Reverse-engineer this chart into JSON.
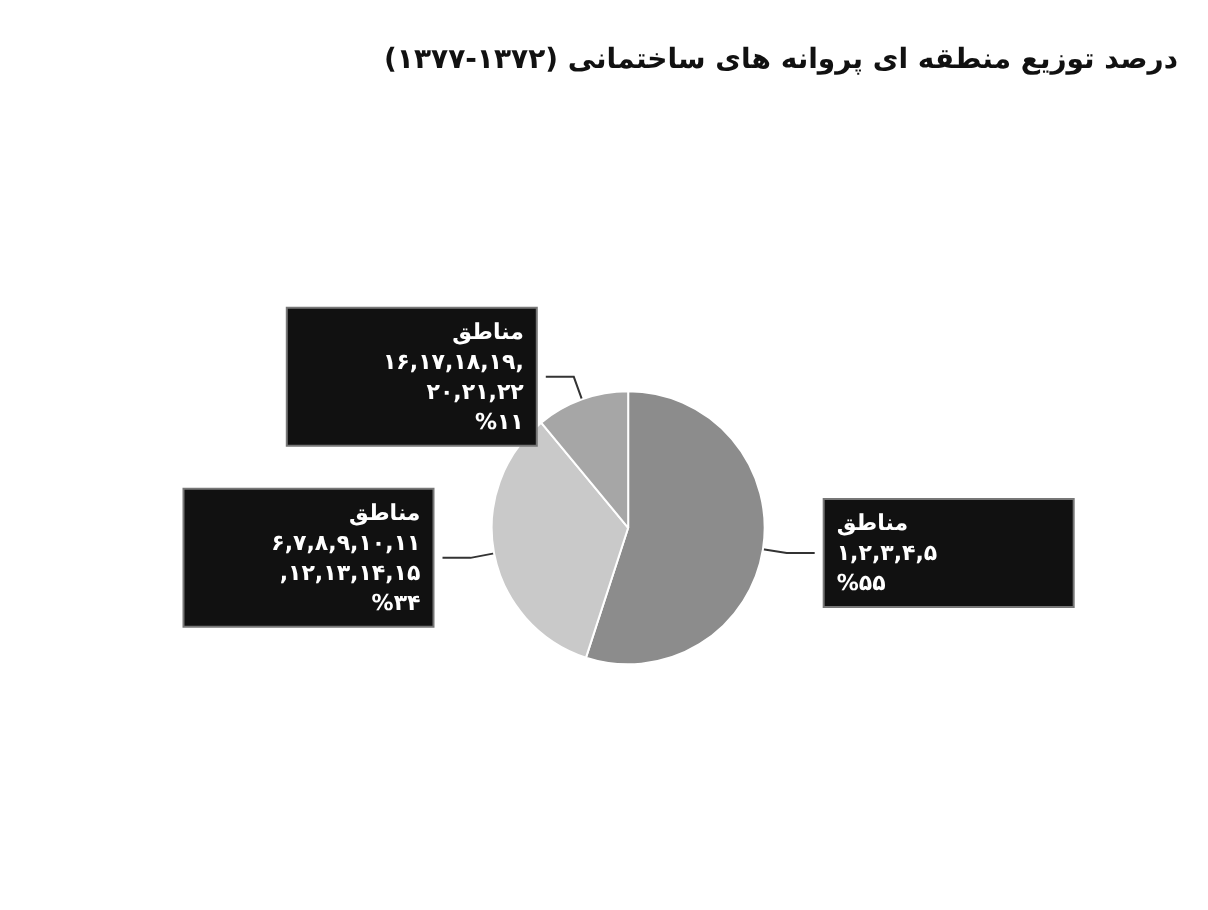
{
  "chart_data": {
    "type": "pie",
    "title": "درصد توزیع منطقه ای پروانه های ساختمانی (۱۳۷۲-۱۳۷۷)",
    "categories": [
      "مناطق ۱,۲,۳,۴,۵",
      "مناطق ۶,۷,۸,۹,۱۰,۱۱,۱۲,۱۳,۱۴,۱۵",
      "مناطق ۱۶,۱۷,۱۸,۱۹,۲۰,۲۱,۲۲"
    ],
    "values": [
      55,
      34,
      11
    ],
    "value_labels": [
      "%۵۵",
      "%۳۴",
      "%۱۱"
    ],
    "colors": [
      "#8c8c8c",
      "#c9c9c9",
      "#a6a6a6"
    ],
    "legend": false
  }
}
